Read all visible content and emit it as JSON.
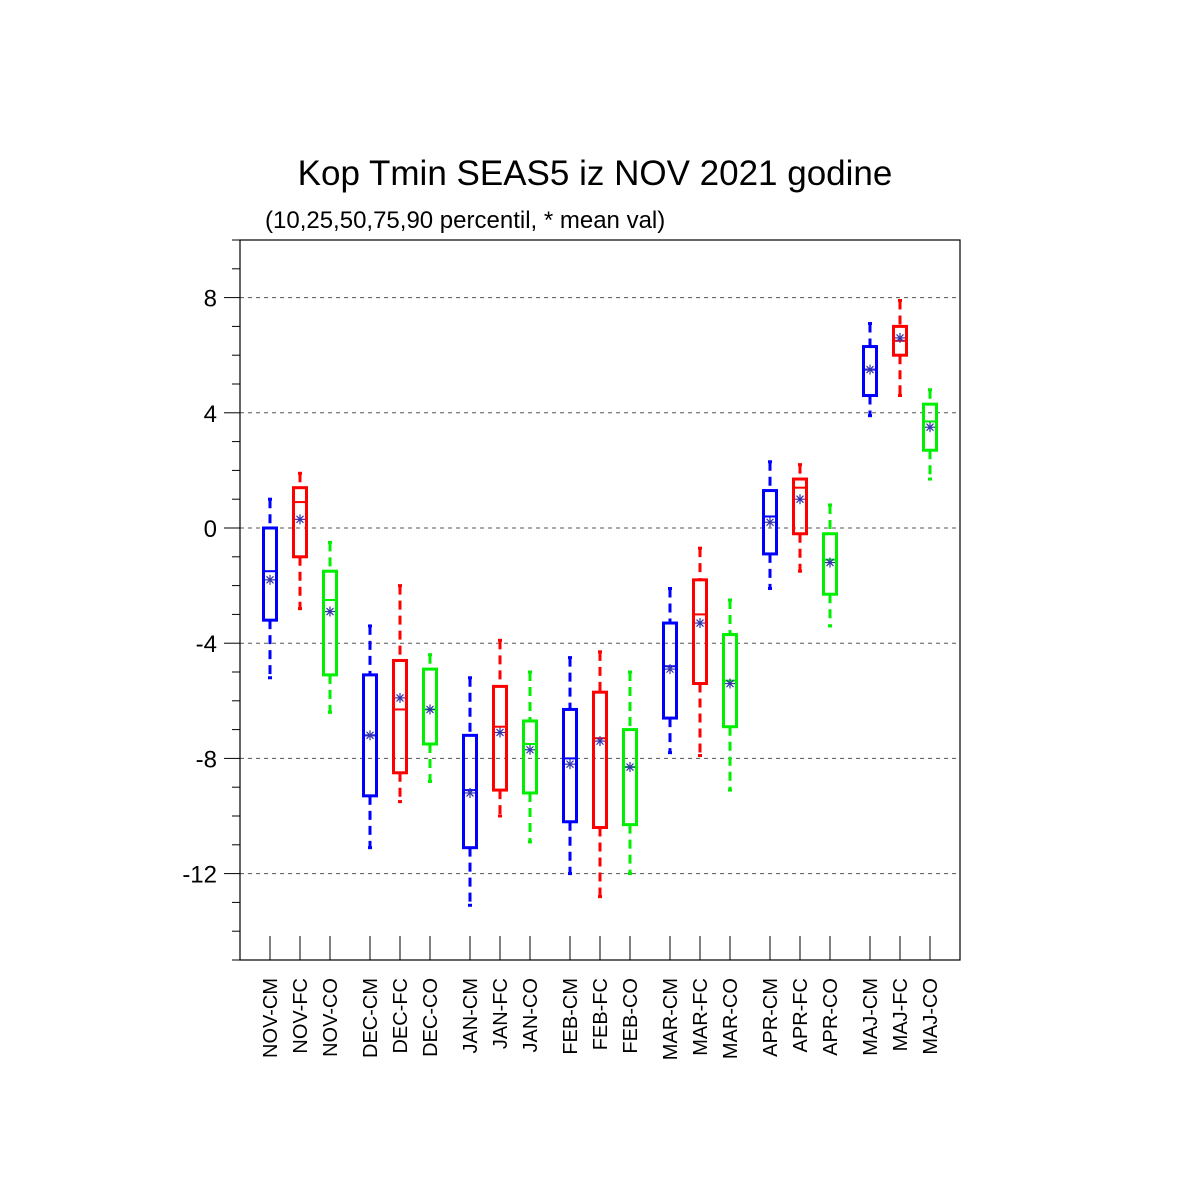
{
  "chart_data": {
    "type": "box",
    "title": "Kop Tmin SEAS5 iz NOV 2021 godine",
    "subtitle": "(10,25,50,75,90 percentil, * mean val)",
    "ylim": [
      -15,
      10
    ],
    "yticks": [
      8,
      4,
      0,
      -4,
      -8,
      -12
    ],
    "ytick_labels": [
      "8",
      "4",
      "0",
      "-4",
      "-8",
      "-12"
    ],
    "grid": "horizontal dashed at major ticks",
    "colors": {
      "CM": "#0000ff",
      "FC": "#ff0000",
      "CO": "#00ee00",
      "mean_marker": "#3333aa",
      "grid": "#555555"
    },
    "groups": [
      "NOV",
      "DEC",
      "JAN",
      "FEB",
      "MAR",
      "APR",
      "MAJ"
    ],
    "boxes": [
      {
        "label": "NOV-CM",
        "kind": "CM",
        "p10": -5.2,
        "p25": -3.2,
        "p50": -1.5,
        "p75": 0.0,
        "p90": 1.0,
        "mean": -1.8
      },
      {
        "label": "NOV-FC",
        "kind": "FC",
        "p10": -2.8,
        "p25": -1.0,
        "p50": 0.9,
        "p75": 1.4,
        "p90": 1.9,
        "mean": 0.3
      },
      {
        "label": "NOV-CO",
        "kind": "CO",
        "p10": -6.4,
        "p25": -5.1,
        "p50": -2.5,
        "p75": -1.5,
        "p90": -0.5,
        "mean": -2.9
      },
      {
        "label": "DEC-CM",
        "kind": "CM",
        "p10": -11.1,
        "p25": -9.3,
        "p50": -7.2,
        "p75": -5.1,
        "p90": -3.4,
        "mean": -7.2
      },
      {
        "label": "DEC-FC",
        "kind": "FC",
        "p10": -9.5,
        "p25": -8.5,
        "p50": -6.3,
        "p75": -4.6,
        "p90": -2.0,
        "mean": -5.9
      },
      {
        "label": "DEC-CO",
        "kind": "CO",
        "p10": -8.8,
        "p25": -7.5,
        "p50": -6.3,
        "p75": -4.9,
        "p90": -4.4,
        "mean": -6.3
      },
      {
        "label": "JAN-CM",
        "kind": "CM",
        "p10": -13.1,
        "p25": -11.1,
        "p50": -9.1,
        "p75": -7.2,
        "p90": -5.2,
        "mean": -9.2
      },
      {
        "label": "JAN-FC",
        "kind": "FC",
        "p10": -10.0,
        "p25": -9.1,
        "p50": -6.9,
        "p75": -5.5,
        "p90": -3.9,
        "mean": -7.1
      },
      {
        "label": "JAN-CO",
        "kind": "CO",
        "p10": -10.9,
        "p25": -9.2,
        "p50": -7.5,
        "p75": -6.7,
        "p90": -5.0,
        "mean": -7.7
      },
      {
        "label": "FEB-CM",
        "kind": "CM",
        "p10": -12.0,
        "p25": -10.2,
        "p50": -8.0,
        "p75": -6.3,
        "p90": -4.5,
        "mean": -8.2
      },
      {
        "label": "FEB-FC",
        "kind": "FC",
        "p10": -12.8,
        "p25": -10.4,
        "p50": -7.3,
        "p75": -5.7,
        "p90": -4.3,
        "mean": -7.4
      },
      {
        "label": "FEB-CO",
        "kind": "CO",
        "p10": -12.0,
        "p25": -10.3,
        "p50": -8.3,
        "p75": -7.0,
        "p90": -5.0,
        "mean": -8.3
      },
      {
        "label": "MAR-CM",
        "kind": "CM",
        "p10": -7.8,
        "p25": -6.6,
        "p50": -4.8,
        "p75": -3.3,
        "p90": -2.1,
        "mean": -4.9
      },
      {
        "label": "MAR-FC",
        "kind": "FC",
        "p10": -7.9,
        "p25": -5.4,
        "p50": -3.0,
        "p75": -1.8,
        "p90": -0.7,
        "mean": -3.3
      },
      {
        "label": "MAR-CO",
        "kind": "CO",
        "p10": -9.1,
        "p25": -6.9,
        "p50": -5.3,
        "p75": -3.7,
        "p90": -2.5,
        "mean": -5.4
      },
      {
        "label": "APR-CM",
        "kind": "CM",
        "p10": -2.1,
        "p25": -0.9,
        "p50": 0.4,
        "p75": 1.3,
        "p90": 2.3,
        "mean": 0.2
      },
      {
        "label": "APR-FC",
        "kind": "FC",
        "p10": -1.5,
        "p25": -0.2,
        "p50": 1.4,
        "p75": 1.7,
        "p90": 2.2,
        "mean": 1.0
      },
      {
        "label": "APR-CO",
        "kind": "CO",
        "p10": -3.4,
        "p25": -2.3,
        "p50": -1.1,
        "p75": -0.2,
        "p90": 0.8,
        "mean": -1.2
      },
      {
        "label": "MAJ-CM",
        "kind": "CM",
        "p10": 3.9,
        "p25": 4.6,
        "p50": 5.5,
        "p75": 6.3,
        "p90": 7.1,
        "mean": 5.5
      },
      {
        "label": "MAJ-FC",
        "kind": "FC",
        "p10": 4.6,
        "p25": 6.0,
        "p50": 6.5,
        "p75": 7.0,
        "p90": 7.9,
        "mean": 6.6
      },
      {
        "label": "MAJ-CO",
        "kind": "CO",
        "p10": 1.7,
        "p25": 2.7,
        "p50": 3.7,
        "p75": 4.3,
        "p90": 4.8,
        "mean": 3.5
      }
    ]
  }
}
